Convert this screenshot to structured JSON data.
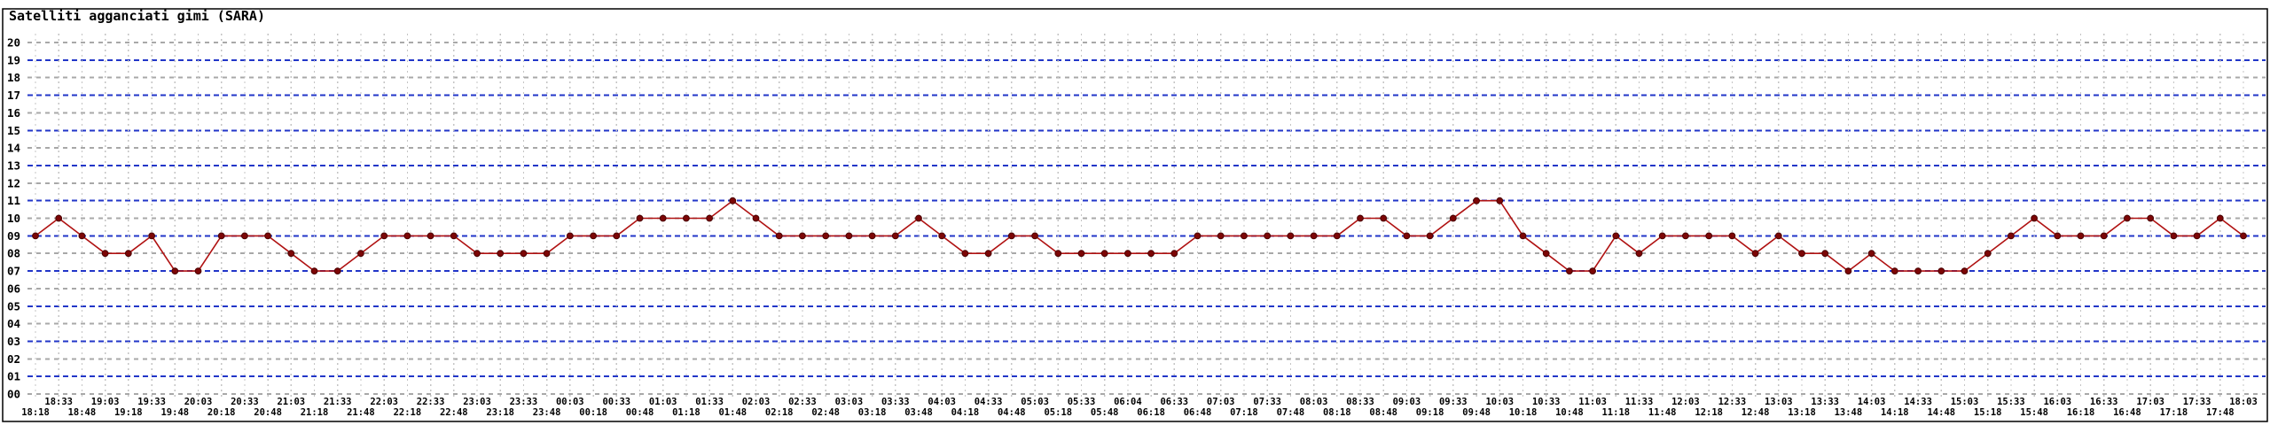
{
  "panel": {
    "title": "Satelliti agganciati gimi (SARA)"
  },
  "colors": {
    "background": "#ffffff",
    "frame": "#000000",
    "grid_even_gray": "#a8a8a8",
    "grid_odd_blue": "#2236c8",
    "grid_vertical": "#c4c4c4",
    "line": "#b01212",
    "marker_fill": "#7c0606",
    "marker_stroke": "#4a0000",
    "text": "#000000"
  },
  "chart_data": {
    "type": "line",
    "title": "Satelliti agganciati gimi (SARA)",
    "xlabel": "",
    "ylabel": "",
    "ylim": [
      0,
      20
    ],
    "ytick_step": 1,
    "grid": "on",
    "legend": "none",
    "yticks": [
      "20",
      "19",
      "18",
      "17",
      "16",
      "15",
      "14",
      "13",
      "12",
      "11",
      "10",
      "09",
      "08",
      "07",
      "06",
      "05",
      "04",
      "03",
      "02",
      "01",
      "00"
    ],
    "x": [
      "18:18",
      "18:33",
      "18:48",
      "19:03",
      "19:18",
      "19:33",
      "19:48",
      "20:03",
      "20:18",
      "20:33",
      "20:48",
      "21:03",
      "21:18",
      "21:33",
      "21:48",
      "22:03",
      "22:18",
      "22:33",
      "22:48",
      "23:03",
      "23:18",
      "23:33",
      "23:48",
      "00:03",
      "00:18",
      "00:33",
      "00:48",
      "01:03",
      "01:18",
      "01:33",
      "01:48",
      "02:03",
      "02:18",
      "02:33",
      "02:48",
      "03:03",
      "03:18",
      "03:33",
      "03:48",
      "04:03",
      "04:18",
      "04:33",
      "04:48",
      "05:03",
      "05:18",
      "05:33",
      "05:48",
      "06:04",
      "06:18",
      "06:33",
      "06:48",
      "07:03",
      "07:18",
      "07:33",
      "07:48",
      "08:03",
      "08:18",
      "08:33",
      "08:48",
      "09:03",
      "09:18",
      "09:33",
      "09:48",
      "10:03",
      "10:18",
      "10:33",
      "10:48",
      "11:03",
      "11:18",
      "11:33",
      "11:48",
      "12:03",
      "12:18",
      "12:33",
      "12:48",
      "13:03",
      "13:18",
      "13:33",
      "13:48",
      "14:03",
      "14:18",
      "14:33",
      "14:48",
      "15:03",
      "15:18",
      "15:33",
      "15:48",
      "16:03",
      "16:18",
      "16:33",
      "16:48",
      "17:03",
      "17:18",
      "17:33",
      "17:48",
      "18:03"
    ],
    "values": [
      9,
      10,
      9,
      8,
      8,
      9,
      7,
      7,
      9,
      9,
      9,
      8,
      7,
      7,
      8,
      9,
      9,
      9,
      9,
      8,
      8,
      8,
      8,
      9,
      9,
      9,
      10,
      10,
      10,
      10,
      11,
      10,
      9,
      9,
      9,
      9,
      9,
      9,
      10,
      9,
      8,
      8,
      9,
      9,
      8,
      8,
      8,
      8,
      8,
      8,
      9,
      9,
      9,
      9,
      9,
      9,
      9,
      10,
      10,
      9,
      9,
      10,
      11,
      11,
      9,
      8,
      7,
      7,
      9,
      8,
      9,
      9,
      9,
      9,
      8,
      9,
      8,
      8,
      7,
      8,
      7,
      7,
      7,
      7,
      8,
      9,
      10,
      9,
      9,
      9,
      10,
      10,
      9,
      9,
      10,
      9
    ]
  }
}
